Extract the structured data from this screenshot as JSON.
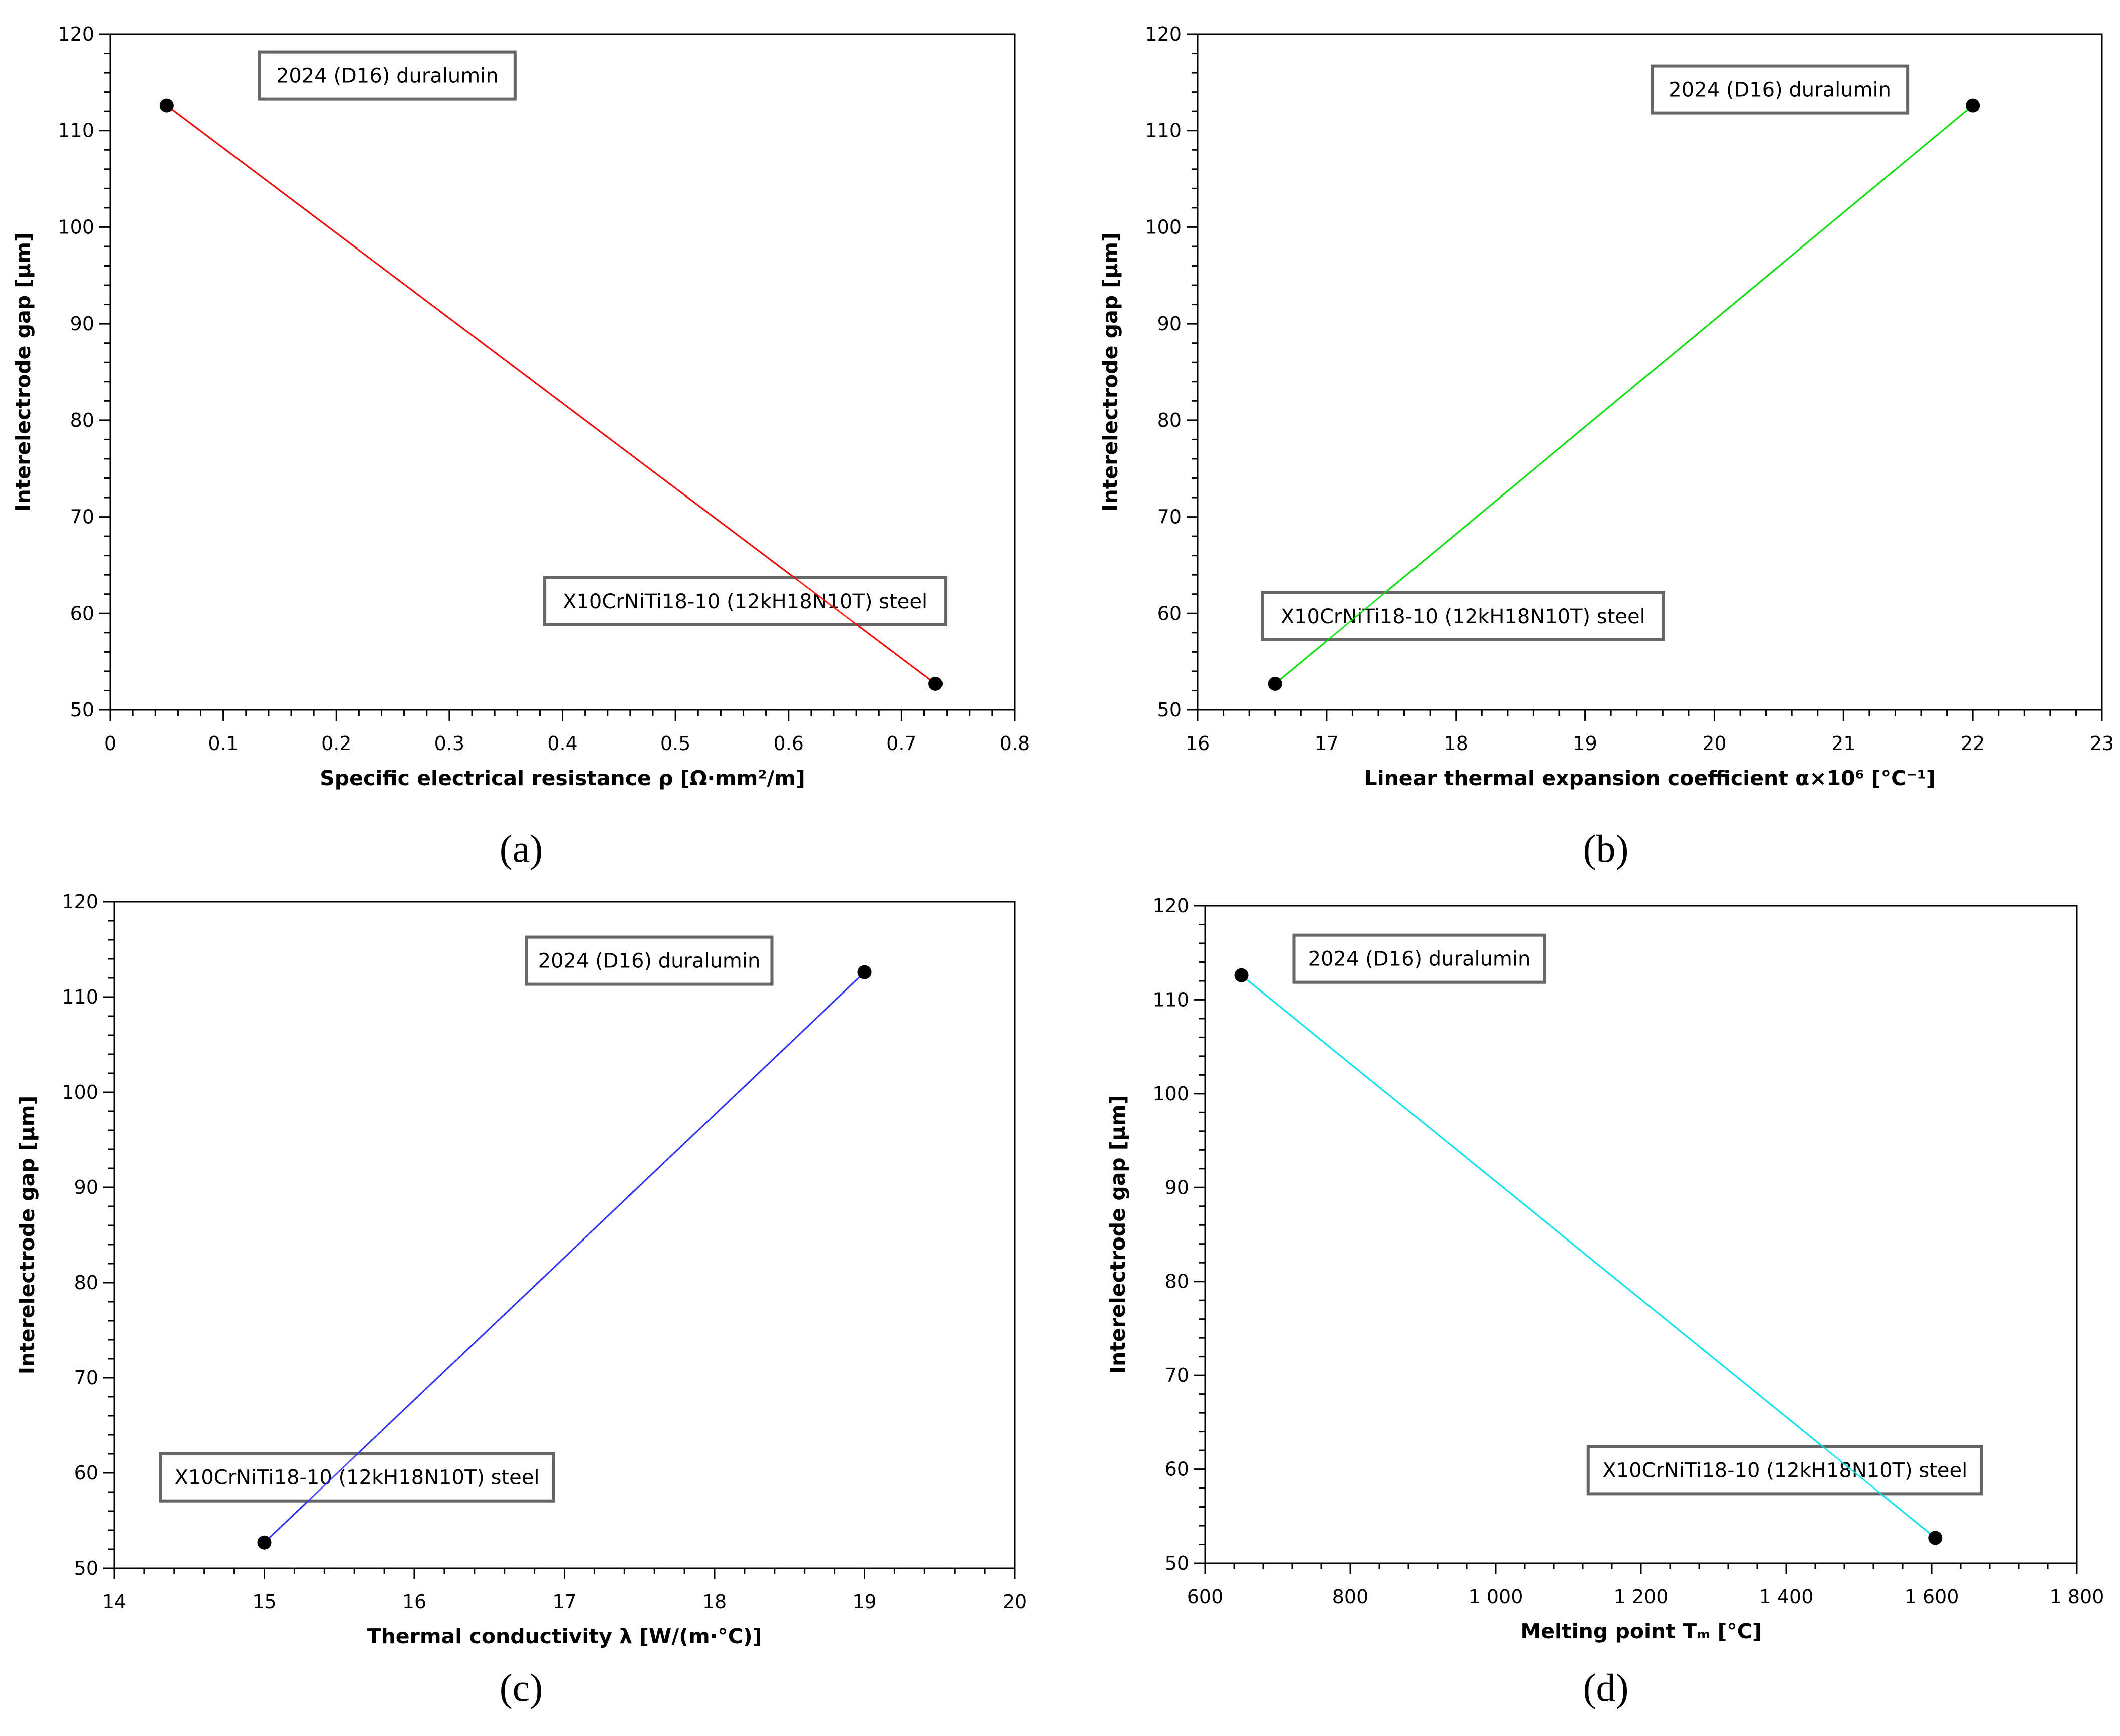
{
  "chart_data": [
    {
      "id": "a",
      "panel_label": "(a)",
      "type": "line",
      "xlabel": "Specific electrical resistance ρ [Ω·mm²/m]",
      "ylabel": "Interelectrode gap [μm]",
      "xlim": [
        0,
        0.8
      ],
      "ylim": [
        50,
        120
      ],
      "xticks": [
        0,
        0.1,
        0.2,
        0.3,
        0.4,
        0.5,
        0.6,
        0.7,
        0.8
      ],
      "xtick_labels": [
        "0",
        "0.1",
        "0.2",
        "0.3",
        "0.4",
        "0.5",
        "0.6",
        "0.7",
        "0.8"
      ],
      "yticks": [
        50,
        60,
        70,
        80,
        90,
        100,
        110,
        120
      ],
      "ytick_labels": [
        "50",
        "60",
        "70",
        "80",
        "90",
        "100",
        "110",
        "120"
      ],
      "line_color": "#ff0000",
      "points": [
        {
          "label": "2024 (D16) duralumin",
          "x": 0.05,
          "y": 112.6
        },
        {
          "label": "X10CrNiTi18-10 (12kH18N10T) steel",
          "x": 0.73,
          "y": 52.7
        }
      ]
    },
    {
      "id": "b",
      "panel_label": "(b)",
      "type": "line",
      "xlabel": "Linear thermal expansion coefficient α×10⁶ [°C⁻¹]",
      "ylabel": "Interelectrode gap [μm]",
      "xlim": [
        16,
        23
      ],
      "ylim": [
        50,
        120
      ],
      "xticks": [
        16,
        17,
        18,
        19,
        20,
        21,
        22,
        23
      ],
      "xtick_labels": [
        "16",
        "17",
        "18",
        "19",
        "20",
        "21",
        "22",
        "23"
      ],
      "yticks": [
        50,
        60,
        70,
        80,
        90,
        100,
        110,
        120
      ],
      "ytick_labels": [
        "50",
        "60",
        "70",
        "80",
        "90",
        "100",
        "110",
        "120"
      ],
      "line_color": "#00e000",
      "points": [
        {
          "label": "X10CrNiTi18-10 (12kH18N10T) steel",
          "x": 16.6,
          "y": 52.7
        },
        {
          "label": "2024 (D16) duralumin",
          "x": 22,
          "y": 112.6
        }
      ]
    },
    {
      "id": "c",
      "panel_label": "(c)",
      "type": "line",
      "xlabel": "Thermal conductivity λ [W/(m·°C)]",
      "ylabel": "Interelectrode gap [μm]",
      "xlim": [
        14,
        20
      ],
      "ylim": [
        50,
        120
      ],
      "xticks": [
        14,
        15,
        16,
        17,
        18,
        19,
        20
      ],
      "xtick_labels": [
        "14",
        "15",
        "16",
        "17",
        "18",
        "19",
        "20"
      ],
      "yticks": [
        50,
        60,
        70,
        80,
        90,
        100,
        110,
        120
      ],
      "ytick_labels": [
        "50",
        "60",
        "70",
        "80",
        "90",
        "100",
        "110",
        "120"
      ],
      "line_color": "#3333ff",
      "points": [
        {
          "label": "X10CrNiTi18-10 (12kH18N10T) steel",
          "x": 15,
          "y": 52.7
        },
        {
          "label": "2024 (D16) duralumin",
          "x": 19,
          "y": 112.6
        }
      ]
    },
    {
      "id": "d",
      "panel_label": "(d)",
      "type": "line",
      "xlabel": "Melting point Tₘ [°C]",
      "ylabel": "Interelectrode gap [μm]",
      "xlim": [
        600,
        1800
      ],
      "ylim": [
        50,
        120
      ],
      "xticks": [
        600,
        800,
        1000,
        1200,
        1400,
        1600,
        1800
      ],
      "xtick_labels": [
        "600",
        "800",
        "1 000",
        "1 200",
        "1 400",
        "1 600",
        "1 800"
      ],
      "yticks": [
        50,
        60,
        70,
        80,
        90,
        100,
        110,
        120
      ],
      "ytick_labels": [
        "50",
        "60",
        "70",
        "80",
        "90",
        "100",
        "110",
        "120"
      ],
      "line_color": "#00e5ee",
      "points": [
        {
          "label": "2024 (D16) duralumin",
          "x": 650,
          "y": 112.6
        },
        {
          "label": "X10CrNiTi18-10 (12kH18N10T) steel",
          "x": 1605,
          "y": 52.7
        }
      ]
    }
  ]
}
